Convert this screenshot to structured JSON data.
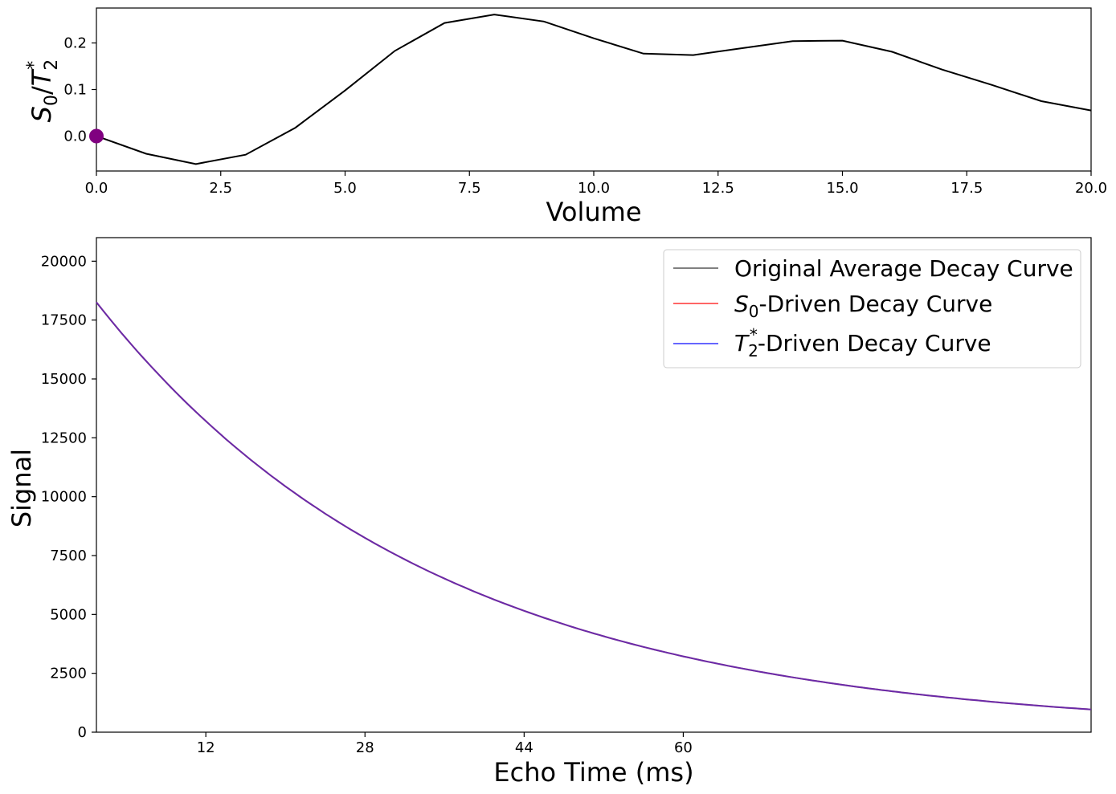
{
  "colors": {
    "volume_line": "#000000",
    "marker": "#800080",
    "original": "#808080",
    "s0": "#ff6666",
    "t2": "#6666ff",
    "overlay": "#6a2aa8",
    "legend_border": "#cccccc"
  },
  "chart_data": [
    {
      "type": "line",
      "xlabel": "Volume",
      "ylabel": "S0/T2*",
      "ylabel_parts": {
        "base": "S",
        "base_sub": "0",
        "slash": "/",
        "t": "T",
        "t_sub": "2",
        "t_sup": "*"
      },
      "xlim": [
        0,
        20
      ],
      "ylim": [
        -0.075,
        0.275
      ],
      "x_ticks": [
        0,
        2.5,
        5,
        7.5,
        10,
        12.5,
        15,
        17.5,
        20
      ],
      "x_tick_labels": [
        "0.0",
        "2.5",
        "5.0",
        "7.5",
        "10.0",
        "12.5",
        "15.0",
        "17.5",
        "20.0"
      ],
      "y_ticks": [
        0,
        0.1,
        0.2
      ],
      "y_tick_labels": [
        "0.0",
        "0.1",
        "0.2"
      ],
      "grid": false,
      "x": [
        0,
        1,
        2,
        3,
        4,
        5,
        6,
        7,
        8,
        9,
        10,
        11,
        12,
        13,
        14,
        15,
        16,
        17,
        18,
        19,
        20
      ],
      "y": [
        0.0,
        -0.038,
        -0.06,
        -0.04,
        0.018,
        0.098,
        0.183,
        0.243,
        0.261,
        0.246,
        0.21,
        0.177,
        0.174,
        0.189,
        0.204,
        0.205,
        0.181,
        0.143,
        0.11,
        0.075,
        0.055
      ],
      "marker": {
        "x": 0,
        "y": 0
      }
    },
    {
      "type": "line",
      "xlabel": "Echo Time (ms)",
      "ylabel": "Signal",
      "xlim": [
        1,
        101
      ],
      "ylim": [
        0,
        21000
      ],
      "x_ticks": [
        12,
        28,
        44,
        60
      ],
      "x_tick_labels": [
        "12",
        "28",
        "44",
        "60"
      ],
      "y_ticks": [
        0,
        2500,
        5000,
        7500,
        10000,
        12500,
        15000,
        17500,
        20000
      ],
      "y_tick_labels": [
        "0",
        "2500",
        "5000",
        "7500",
        "10000",
        "12500",
        "15000",
        "17500",
        "20000"
      ],
      "grid": false,
      "legend_position": "top-right",
      "curve_model": {
        "S0": 18800,
        "T2star": 34.0
      },
      "series": [
        {
          "name": "Original Average Decay Curve",
          "legend_parts": {
            "text": "Original Average Decay Curve"
          }
        },
        {
          "name": "S0-Driven Decay Curve",
          "legend_parts": {
            "sym": "S",
            "sub": "0",
            "text": "-Driven Decay Curve"
          }
        },
        {
          "name": "T2*-Driven Decay Curve",
          "legend_parts": {
            "sym": "T",
            "sub": "2",
            "sup": "*",
            "text": "-Driven Decay Curve"
          }
        }
      ]
    }
  ]
}
